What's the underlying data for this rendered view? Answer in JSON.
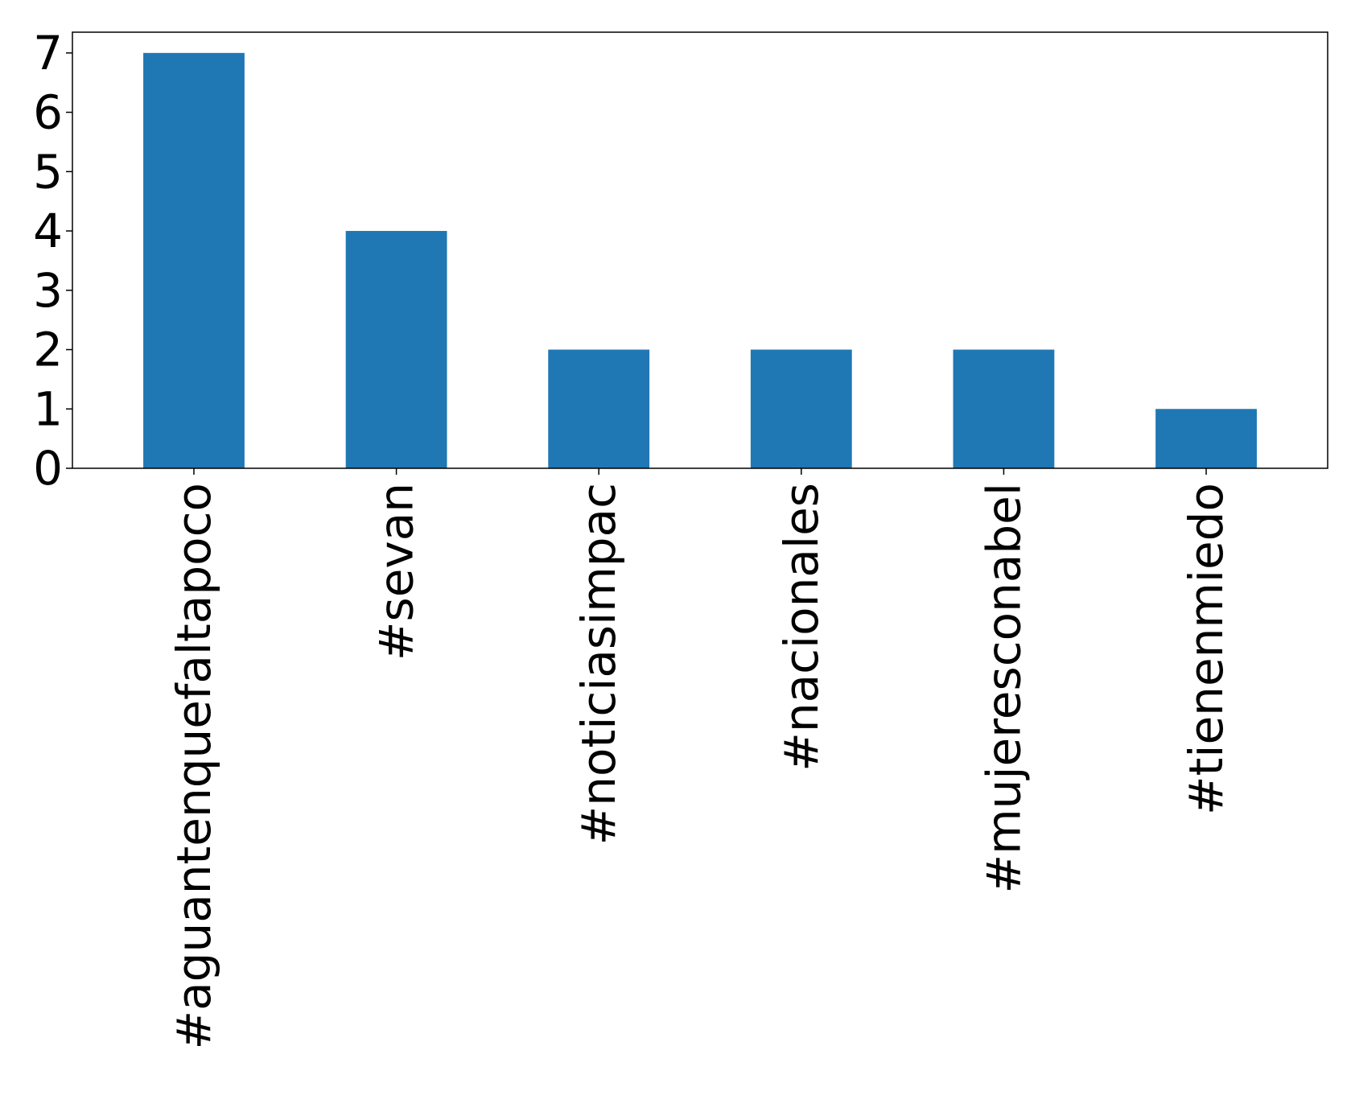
{
  "chart_data": {
    "type": "bar",
    "title": "",
    "xlabel": "",
    "ylabel": "",
    "categories": [
      "#aguantenquefaltapoco",
      "#sevan",
      "#noticiasimpac",
      "#nacionales",
      "#mujeresconabel",
      "#tienenmiedo"
    ],
    "values": [
      7,
      4,
      2,
      2,
      2,
      1
    ],
    "ylim": [
      0,
      7.35
    ],
    "yticks": [
      0,
      1,
      2,
      3,
      4,
      5,
      6,
      7
    ],
    "grid": false,
    "legend": "none",
    "bar_color": "#1f77b4"
  }
}
